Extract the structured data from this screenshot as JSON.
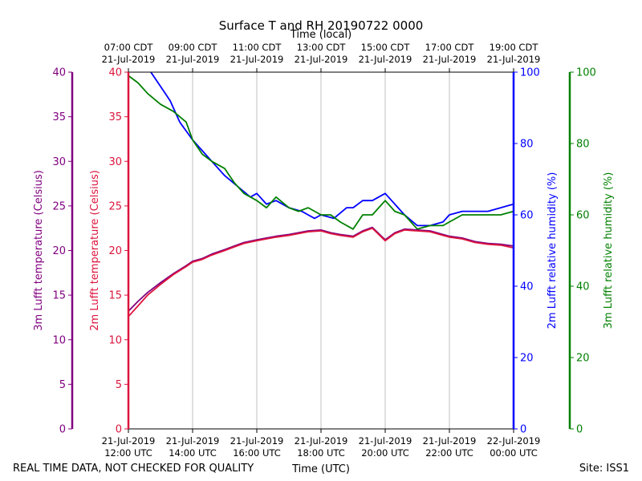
{
  "chart_data": {
    "type": "line",
    "title": "Surface T and RH 20190722 0000",
    "top_axis_label": "Time (local)",
    "xlabel": "Time (UTC)",
    "x_range_hours_utc": [
      12,
      24
    ],
    "bottom_ticks": [
      {
        "hour": 12,
        "line1": "21-Jul-2019",
        "line2": "12:00 UTC"
      },
      {
        "hour": 14,
        "line1": "21-Jul-2019",
        "line2": "14:00 UTC"
      },
      {
        "hour": 16,
        "line1": "21-Jul-2019",
        "line2": "16:00 UTC"
      },
      {
        "hour": 18,
        "line1": "21-Jul-2019",
        "line2": "18:00 UTC"
      },
      {
        "hour": 20,
        "line1": "21-Jul-2019",
        "line2": "20:00 UTC"
      },
      {
        "hour": 22,
        "line1": "21-Jul-2019",
        "line2": "22:00 UTC"
      },
      {
        "hour": 24,
        "line1": "22-Jul-2019",
        "line2": "00:00 UTC"
      }
    ],
    "top_ticks": [
      {
        "hour": 12,
        "line1": "07:00 CDT",
        "line2": "21-Jul-2019"
      },
      {
        "hour": 14,
        "line1": "09:00 CDT",
        "line2": "21-Jul-2019"
      },
      {
        "hour": 16,
        "line1": "11:00 CDT",
        "line2": "21-Jul-2019"
      },
      {
        "hour": 18,
        "line1": "13:00 CDT",
        "line2": "21-Jul-2019"
      },
      {
        "hour": 20,
        "line1": "15:00 CDT",
        "line2": "21-Jul-2019"
      },
      {
        "hour": 22,
        "line1": "17:00 CDT",
        "line2": "21-Jul-2019"
      },
      {
        "hour": 24,
        "line1": "19:00 CDT",
        "line2": "21-Jul-2019"
      }
    ],
    "axes": [
      {
        "id": "t3m",
        "label": "3m Lufft temperature (Celsius)",
        "color": "#800080",
        "range": [
          0,
          40
        ],
        "ticks": [
          0,
          5,
          10,
          15,
          20,
          25,
          30,
          35,
          40
        ]
      },
      {
        "id": "t2m",
        "label": "2m Lufft temperature (Celsius)",
        "color": "#dc143c",
        "range": [
          0,
          40
        ],
        "ticks": [
          0,
          5,
          10,
          15,
          20,
          25,
          30,
          35,
          40
        ]
      },
      {
        "id": "rh2m",
        "label": "2m Lufft relative humidity (%)",
        "color": "#0000ff",
        "range": [
          0,
          100
        ],
        "ticks": [
          0,
          20,
          40,
          60,
          80,
          100
        ]
      },
      {
        "id": "rh3m",
        "label": "3m Lufft relative humidity (%)",
        "color": "#008000",
        "range": [
          0,
          100
        ],
        "ticks": [
          0,
          20,
          40,
          60,
          80,
          100
        ]
      }
    ],
    "series": [
      {
        "name": "2m Lufft relative humidity",
        "axis": "rh2m",
        "color": "#0000ff",
        "x": [
          12.7,
          13.0,
          13.3,
          13.6,
          14.0,
          14.3,
          14.6,
          15.0,
          15.4,
          15.8,
          16.0,
          16.3,
          16.6,
          17.0,
          17.4,
          17.8,
          18.0,
          18.4,
          18.8,
          19.0,
          19.3,
          19.6,
          20.0,
          20.3,
          20.6,
          21.0,
          21.4,
          21.8,
          22.0,
          22.4,
          22.8,
          23.2,
          23.6,
          24.0
        ],
        "y": [
          100,
          96,
          92,
          86,
          81,
          78,
          75,
          71,
          68,
          65,
          66,
          63,
          64,
          62,
          61,
          59,
          60,
          59,
          62,
          62,
          64,
          64,
          66,
          63,
          60,
          57,
          57,
          58,
          60,
          61,
          61,
          61,
          62,
          63
        ]
      },
      {
        "name": "3m Lufft relative humidity",
        "axis": "rh3m",
        "color": "#008000",
        "x": [
          12.0,
          12.3,
          12.6,
          13.0,
          13.4,
          13.8,
          14.0,
          14.3,
          14.6,
          15.0,
          15.3,
          15.6,
          16.0,
          16.3,
          16.6,
          17.0,
          17.3,
          17.6,
          18.0,
          18.3,
          18.6,
          19.0,
          19.3,
          19.6,
          20.0,
          20.3,
          20.6,
          21.0,
          21.4,
          21.8,
          22.0,
          22.4,
          22.8,
          23.2,
          23.6,
          24.0
        ],
        "y": [
          99,
          97,
          94,
          91,
          89,
          86,
          81,
          77,
          75,
          73,
          69,
          66,
          64,
          62,
          65,
          62,
          61,
          62,
          60,
          60,
          58,
          56,
          60,
          60,
          64,
          61,
          60,
          56,
          57,
          57,
          58,
          60,
          60,
          60,
          60,
          61
        ]
      },
      {
        "name": "3m Lufft temperature",
        "axis": "t3m",
        "color": "#800080",
        "x": [
          12.0,
          12.3,
          12.6,
          13.0,
          13.4,
          13.8,
          14.0,
          14.3,
          14.6,
          15.0,
          15.3,
          15.6,
          16.0,
          16.3,
          16.6,
          17.0,
          17.3,
          17.6,
          18.0,
          18.3,
          18.6,
          19.0,
          19.3,
          19.6,
          20.0,
          20.3,
          20.6,
          21.0,
          21.4,
          21.8,
          22.0,
          22.4,
          22.8,
          23.2,
          23.6,
          24.0
        ],
        "y": [
          13.2,
          14.3,
          15.3,
          16.4,
          17.4,
          18.3,
          18.8,
          19.1,
          19.6,
          20.1,
          20.5,
          20.9,
          21.2,
          21.4,
          21.6,
          21.8,
          22.0,
          22.2,
          22.3,
          22.0,
          21.8,
          21.6,
          22.2,
          22.6,
          21.2,
          22.0,
          22.4,
          22.3,
          22.2,
          21.8,
          21.6,
          21.4,
          21.0,
          20.8,
          20.7,
          20.5
        ]
      },
      {
        "name": "2m Lufft temperature",
        "axis": "t2m",
        "color": "#dc143c",
        "x": [
          12.0,
          12.3,
          12.6,
          13.0,
          13.4,
          13.8,
          14.0,
          14.3,
          14.6,
          15.0,
          15.3,
          15.6,
          16.0,
          16.3,
          16.6,
          17.0,
          17.3,
          17.6,
          18.0,
          18.3,
          18.6,
          19.0,
          19.3,
          19.6,
          20.0,
          20.3,
          20.6,
          21.0,
          21.4,
          21.8,
          22.0,
          22.4,
          22.8,
          23.2,
          23.6,
          24.0
        ],
        "y": [
          12.6,
          13.8,
          15.0,
          16.2,
          17.3,
          18.2,
          18.7,
          19.0,
          19.5,
          20.0,
          20.4,
          20.8,
          21.1,
          21.3,
          21.5,
          21.7,
          21.9,
          22.1,
          22.2,
          21.9,
          21.7,
          21.5,
          22.1,
          22.5,
          21.1,
          21.9,
          22.3,
          22.2,
          22.1,
          21.7,
          21.5,
          21.3,
          20.9,
          20.7,
          20.6,
          20.3
        ]
      }
    ]
  },
  "footer": {
    "left_note": "REAL TIME DATA, NOT CHECKED FOR QUALITY",
    "right_note": "Site: ISS1"
  }
}
